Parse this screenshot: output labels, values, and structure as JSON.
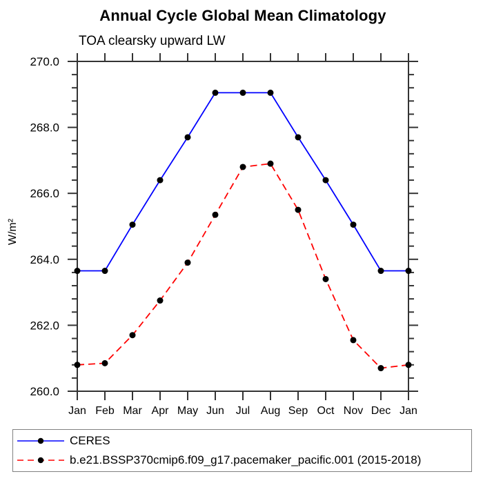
{
  "header": {
    "title": "Annual Cycle Global Mean Climatology",
    "subtitle": "TOA clearsky upward LW"
  },
  "chart_data": {
    "type": "line",
    "title": "Annual Cycle Global Mean Climatology",
    "subtitle": "TOA clearsky upward LW",
    "xlabel": "",
    "ylabel": "W/m²",
    "categories": [
      "Jan",
      "Feb",
      "Mar",
      "Apr",
      "May",
      "Jun",
      "Jul",
      "Aug",
      "Sep",
      "Oct",
      "Nov",
      "Dec",
      "Jan"
    ],
    "ylim": [
      260.0,
      270.0
    ],
    "ytick_interval": 2.0,
    "yminor_interval": 0.4,
    "ytick_labels": [
      "260.0",
      "262.0",
      "264.0",
      "266.0",
      "268.0",
      "270.0"
    ],
    "grid": false,
    "legend_position": "bottom-box",
    "frame": "all-four-sides-ticks-outward",
    "colors": {
      "axis": "#333333",
      "marker": "#000000",
      "background": "#ffffff",
      "legend_border": "#808080"
    },
    "series": [
      {
        "name": "CERES",
        "color": "#0000ff",
        "style": "solid",
        "marker": "filled-circle",
        "marker_color": "#000000",
        "values": [
          263.65,
          263.65,
          265.05,
          266.4,
          267.7,
          269.05,
          269.05,
          269.05,
          267.7,
          266.4,
          265.05,
          263.65,
          263.65
        ]
      },
      {
        "name": "b.e21.BSSP370cmip6.f09_g17.pacemaker_pacific.001 (2015-2018)",
        "color": "#ff0000",
        "style": "dashed",
        "marker": "filled-circle",
        "marker_color": "#000000",
        "values": [
          260.8,
          260.85,
          261.7,
          262.75,
          263.9,
          265.35,
          266.8,
          266.9,
          265.5,
          263.4,
          261.55,
          260.7,
          260.8
        ]
      }
    ]
  }
}
